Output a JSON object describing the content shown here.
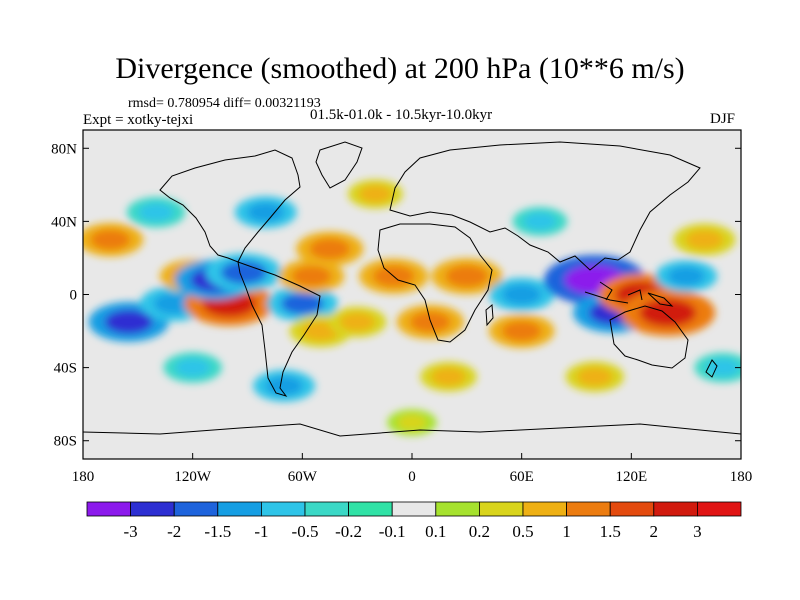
{
  "header": {
    "title": "Divergence (smoothed) at 200 hPa (10**6 m/s)",
    "stats": "rmsd= 0.780954 diff= 0.00321193",
    "experiment": "Expt = xotky-tejxi",
    "period": "01.5k-01.0k - 10.5kyr-10.0kyr",
    "season": "DJF"
  },
  "chart_data": {
    "type": "heatmap",
    "title": "Divergence (smoothed) at 200 hPa (10**6 m/s)",
    "variable": "Divergence (smoothed)",
    "units": "10**6 m/s",
    "level": "200 hPa",
    "season": "DJF",
    "projection": "cylindrical equidistant",
    "xlim": [
      -180,
      180
    ],
    "ylim": [
      -90,
      90
    ],
    "x_ticks": [
      {
        "value": -180,
        "label": "180"
      },
      {
        "value": -120,
        "label": "120W"
      },
      {
        "value": -60,
        "label": "60W"
      },
      {
        "value": 0,
        "label": "0"
      },
      {
        "value": 60,
        "label": "60E"
      },
      {
        "value": 120,
        "label": "120E"
      },
      {
        "value": 180,
        "label": "180"
      }
    ],
    "y_ticks": [
      {
        "value": 80,
        "label": "80N"
      },
      {
        "value": 40,
        "label": "40N"
      },
      {
        "value": 0,
        "label": "0"
      },
      {
        "value": -40,
        "label": "40S"
      },
      {
        "value": -80,
        "label": "80S"
      }
    ],
    "colorbar": {
      "labels": [
        "-3",
        "-2",
        "-1.5",
        "-1",
        "-0.5",
        "-0.2",
        "-0.1",
        "0.1",
        "0.2",
        "0.5",
        "1",
        "1.5",
        "2",
        "3"
      ],
      "colors": [
        "#8c1aec",
        "#2d2fd2",
        "#1e63dc",
        "#159ee3",
        "#2ec4e8",
        "#3bd8c6",
        "#30e2a6",
        "#e8e8e8",
        "#a6e22e",
        "#d9d41c",
        "#eeb014",
        "#ec7c10",
        "#e34a0e",
        "#d11a0e",
        "#e01414"
      ]
    },
    "features": [
      {
        "lon": -155,
        "lat": -15,
        "value": -2.0
      },
      {
        "lon": -130,
        "lat": -5,
        "value": -1.4
      },
      {
        "lon": -120,
        "lat": 10,
        "value": 1.2
      },
      {
        "lon": -100,
        "lat": -5,
        "value": 2.5
      },
      {
        "lon": -108,
        "lat": 8,
        "value": -2.0
      },
      {
        "lon": -92,
        "lat": 12,
        "value": -1.8
      },
      {
        "lon": -60,
        "lat": -5,
        "value": -1.5
      },
      {
        "lon": -55,
        "lat": 10,
        "value": 1.2
      },
      {
        "lon": -50,
        "lat": -20,
        "value": 1.0
      },
      {
        "lon": -45,
        "lat": 25,
        "value": 1.3
      },
      {
        "lon": -30,
        "lat": -15,
        "value": 0.8
      },
      {
        "lon": -10,
        "lat": 10,
        "value": 1.4
      },
      {
        "lon": 10,
        "lat": -15,
        "value": 1.3
      },
      {
        "lon": 30,
        "lat": 10,
        "value": 1.5
      },
      {
        "lon": 60,
        "lat": -20,
        "value": 1.2
      },
      {
        "lon": 60,
        "lat": 0,
        "value": -1.2
      },
      {
        "lon": 100,
        "lat": 8,
        "value": -3.2
      },
      {
        "lon": 110,
        "lat": -10,
        "value": -2.0
      },
      {
        "lon": 125,
        "lat": 0,
        "value": 2.2
      },
      {
        "lon": 140,
        "lat": -10,
        "value": 2.8
      },
      {
        "lon": 150,
        "lat": 10,
        "value": -1.0
      },
      {
        "lon": 160,
        "lat": 30,
        "value": 1.0
      },
      {
        "lon": -165,
        "lat": 30,
        "value": 1.2
      },
      {
        "lon": -140,
        "lat": 45,
        "value": -0.8
      },
      {
        "lon": -80,
        "lat": 45,
        "value": -1.0
      },
      {
        "lon": -20,
        "lat": 55,
        "value": 0.6
      },
      {
        "lon": 70,
        "lat": 40,
        "value": -0.6
      },
      {
        "lon": -120,
        "lat": -40,
        "value": -0.8
      },
      {
        "lon": -70,
        "lat": -50,
        "value": -1.0
      },
      {
        "lon": 20,
        "lat": -45,
        "value": 0.7
      },
      {
        "lon": 100,
        "lat": -45,
        "value": 0.8
      },
      {
        "lon": 170,
        "lat": -40,
        "value": -0.7
      },
      {
        "lon": 0,
        "lat": -70,
        "value": 0.3
      }
    ]
  }
}
